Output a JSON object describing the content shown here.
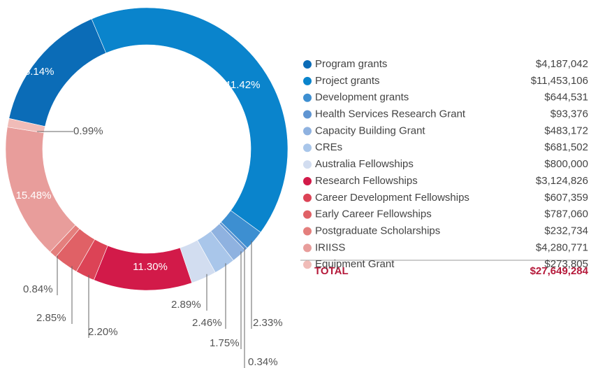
{
  "chart_data": {
    "type": "donut",
    "categories": [
      "Program grants",
      "Project grants",
      "Development grants",
      "Health Services Research Grant",
      "Capacity Building Grant",
      "CREs",
      "Australia Fellowships",
      "Research Fellowships",
      "Career Development Fellowships",
      "Early Career Fellowships",
      "Postgraduate Scholarships",
      "IRIISS",
      "Equipment Grant"
    ],
    "values": [
      15.14,
      41.42,
      2.33,
      0.34,
      1.75,
      2.46,
      2.89,
      11.3,
      2.2,
      2.85,
      0.84,
      15.48,
      0.99
    ],
    "value_labels": [
      "15.14%",
      "41.42%",
      "2.33%",
      "0.34%",
      "1.75%",
      "2.46%",
      "2.89%",
      "11.30%",
      "2.20%",
      "2.85%",
      "0.84%",
      "15.48%",
      "0.99%"
    ],
    "colors": [
      "#0b6cb7",
      "#0a84cc",
      "#3d8fd1",
      "#5f95d2",
      "#8fb2e0",
      "#a9c6ea",
      "#d2ddf0",
      "#d21a49",
      "#dc4356",
      "#e06166",
      "#e47f7d",
      "#e89d9b",
      "#f0bcb8"
    ],
    "amounts": [
      "$4,187,042",
      "$11,453,106",
      "$644,531",
      "$93,376",
      "$483,172",
      "$681,502",
      "$800,000",
      "$3,124,826",
      "$607,359",
      "$787,060",
      "$232,734",
      "$4,280,771",
      "$273,805"
    ],
    "total_label": "TOTAL",
    "total": "$27,649,284"
  }
}
